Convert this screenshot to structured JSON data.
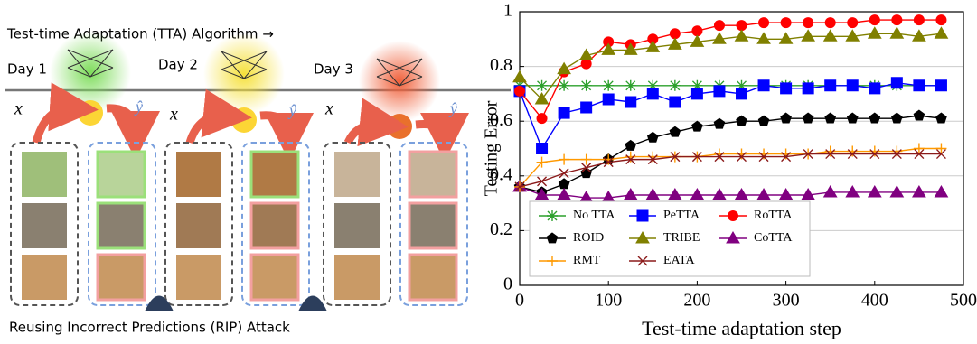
{
  "diagram": {
    "title": "Test-time Adaptation (TTA) Algorithm →",
    "days": [
      "Day 1",
      "Day 2",
      "Day 3"
    ],
    "input_label": "x",
    "output_label": "ŷ",
    "caption": "Reusing Incorrect Predictions (RIP) Attack"
  },
  "chart_data": {
    "type": "line",
    "xlabel": "Test-time adaptation step",
    "ylabel": "Testing Error",
    "x": [
      0,
      25,
      50,
      75,
      100,
      125,
      150,
      175,
      200,
      225,
      250,
      275,
      300,
      325,
      350,
      375,
      400,
      425,
      450,
      475
    ],
    "xlim": [
      0,
      500
    ],
    "xticks": [
      0,
      100,
      200,
      300,
      400,
      500
    ],
    "ylim": [
      0,
      1
    ],
    "yticks": [
      0,
      0.2,
      0.4,
      0.6,
      0.8,
      1
    ],
    "grid": true,
    "legend": "lower right",
    "series": [
      {
        "name": "No TTA",
        "color": "#2ca02c",
        "marker": "asterisk",
        "values": [
          0.73,
          0.73,
          0.73,
          0.73,
          0.73,
          0.73,
          0.73,
          0.73,
          0.73,
          0.73,
          0.73,
          0.73,
          0.73,
          0.73,
          0.73,
          0.73,
          0.73,
          0.73,
          0.73,
          0.73
        ]
      },
      {
        "name": "PeTTA",
        "color": "#0000ff",
        "marker": "square",
        "values": [
          0.71,
          0.5,
          0.63,
          0.65,
          0.68,
          0.67,
          0.7,
          0.67,
          0.7,
          0.71,
          0.7,
          0.73,
          0.72,
          0.72,
          0.73,
          0.73,
          0.72,
          0.74,
          0.73,
          0.73
        ]
      },
      {
        "name": "RoTTA",
        "color": "#ff0000",
        "marker": "circle",
        "values": [
          0.71,
          0.61,
          0.78,
          0.81,
          0.89,
          0.88,
          0.9,
          0.92,
          0.93,
          0.95,
          0.95,
          0.96,
          0.96,
          0.96,
          0.96,
          0.96,
          0.97,
          0.97,
          0.97,
          0.97
        ]
      },
      {
        "name": "ROID",
        "color": "#000000",
        "marker": "pentagon",
        "values": [
          0.36,
          0.34,
          0.37,
          0.41,
          0.46,
          0.51,
          0.54,
          0.56,
          0.58,
          0.59,
          0.6,
          0.6,
          0.61,
          0.61,
          0.61,
          0.61,
          0.61,
          0.61,
          0.62,
          0.61
        ]
      },
      {
        "name": "TRIBE",
        "color": "#808000",
        "marker": "triangle-up",
        "values": [
          0.76,
          0.68,
          0.79,
          0.84,
          0.86,
          0.86,
          0.87,
          0.88,
          0.89,
          0.9,
          0.91,
          0.9,
          0.9,
          0.91,
          0.91,
          0.91,
          0.92,
          0.92,
          0.91,
          0.92
        ]
      },
      {
        "name": "CoTTA",
        "color": "#800080",
        "marker": "triangle-up",
        "values": [
          0.36,
          0.33,
          0.33,
          0.32,
          0.32,
          0.33,
          0.33,
          0.33,
          0.33,
          0.33,
          0.33,
          0.33,
          0.33,
          0.33,
          0.34,
          0.34,
          0.34,
          0.34,
          0.34,
          0.34
        ]
      },
      {
        "name": "RMT",
        "color": "#ff9900",
        "marker": "plus",
        "values": [
          0.36,
          0.45,
          0.46,
          0.46,
          0.46,
          0.47,
          0.47,
          0.47,
          0.47,
          0.48,
          0.48,
          0.48,
          0.48,
          0.48,
          0.49,
          0.49,
          0.49,
          0.49,
          0.5,
          0.5
        ]
      },
      {
        "name": "EATA",
        "color": "#8b1a1a",
        "marker": "x",
        "values": [
          0.36,
          0.38,
          0.41,
          0.43,
          0.45,
          0.46,
          0.46,
          0.47,
          0.47,
          0.47,
          0.47,
          0.47,
          0.47,
          0.48,
          0.48,
          0.48,
          0.48,
          0.48,
          0.48,
          0.48
        ]
      }
    ]
  }
}
